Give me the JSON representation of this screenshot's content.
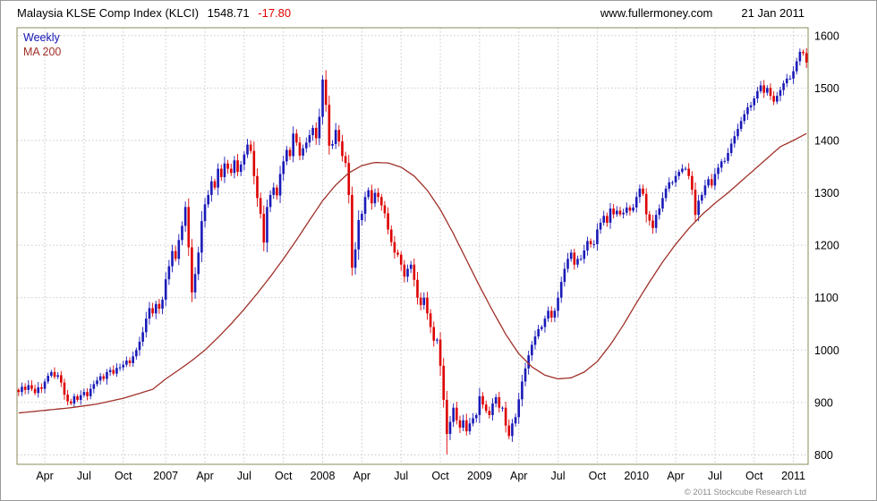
{
  "header": {
    "title": "Malaysia KLSE Comp Index (KLCI)",
    "last_price": "1548.71",
    "change": "-17.80",
    "site": "www.fullermoney.com",
    "date": "21 Jan 2011"
  },
  "legend": {
    "series1": "Weekly",
    "series2": "MA 200"
  },
  "footer": {
    "copyright": "© 2011 Stockcube Research Ltd"
  },
  "colors": {
    "up": "#1a1ab8",
    "down": "#dd0000",
    "ma": "#a03028",
    "grid": "#c9c9c9",
    "frame": "#8b8b5a",
    "axis_text": "#000000",
    "change_text": "#e00000"
  },
  "chart_data": {
    "type": "candlestick",
    "timeframe": "Weekly",
    "title": "Malaysia KLSE Comp Index (KLCI)",
    "overlay": "MA 200",
    "last_close": 1548.71,
    "change": -17.8,
    "ylim": [
      800,
      1600
    ],
    "y_labels": [
      1600,
      1500,
      1400,
      1300,
      1200,
      1100,
      1000,
      900,
      800
    ],
    "x_ticks": [
      {
        "label": "Apr",
        "index": 8
      },
      {
        "label": "Jul",
        "index": 20
      },
      {
        "label": "Oct",
        "index": 32
      },
      {
        "label": "2007",
        "index": 45
      },
      {
        "label": "Apr",
        "index": 57
      },
      {
        "label": "Jul",
        "index": 69
      },
      {
        "label": "Oct",
        "index": 81
      },
      {
        "label": "2008",
        "index": 93
      },
      {
        "label": "Apr",
        "index": 105
      },
      {
        "label": "Jul",
        "index": 117
      },
      {
        "label": "Oct",
        "index": 129
      },
      {
        "label": "2009",
        "index": 141
      },
      {
        "label": "Apr",
        "index": 153
      },
      {
        "label": "Jul",
        "index": 165
      },
      {
        "label": "Oct",
        "index": 177
      },
      {
        "label": "2010",
        "index": 189
      },
      {
        "label": "Apr",
        "index": 201
      },
      {
        "label": "Jul",
        "index": 213
      },
      {
        "label": "Oct",
        "index": 225
      },
      {
        "label": "2011",
        "index": 237
      }
    ],
    "first_open": 924,
    "closes": [
      920,
      930,
      924,
      933,
      926,
      918,
      929,
      926,
      940,
      951,
      958,
      949,
      952,
      938,
      915,
      902,
      898,
      912,
      905,
      914,
      920,
      912,
      926,
      935,
      942,
      950,
      945,
      958,
      962,
      955,
      966,
      967,
      972,
      980,
      975,
      988,
      1000,
      1016,
      1034,
      1060,
      1080,
      1070,
      1088,
      1079,
      1096,
      1135,
      1160,
      1189,
      1174,
      1210,
      1237,
      1273,
      1196,
      1110,
      1145,
      1186,
      1246,
      1278,
      1296,
      1322,
      1310,
      1346,
      1330,
      1356,
      1346,
      1338,
      1362,
      1340,
      1354,
      1373,
      1392,
      1380,
      1332,
      1290,
      1260,
      1205,
      1273,
      1296,
      1310,
      1295,
      1336,
      1360,
      1382,
      1370,
      1413,
      1396,
      1371,
      1385,
      1396,
      1410,
      1424,
      1404,
      1445,
      1516,
      1468,
      1390,
      1393,
      1420,
      1398,
      1370,
      1357,
      1296,
      1157,
      1192,
      1248,
      1260,
      1292,
      1305,
      1280,
      1300,
      1292,
      1276,
      1261,
      1230,
      1206,
      1186,
      1182,
      1163,
      1140,
      1155,
      1163,
      1134,
      1100,
      1086,
      1100,
      1070,
      1044,
      1018,
      1020,
      970,
      905,
      840,
      863,
      890,
      866,
      852,
      866,
      845,
      860,
      870,
      876,
      912,
      896,
      884,
      876,
      898,
      910,
      890,
      890,
      856,
      836,
      860,
      872,
      906,
      940,
      965,
      990,
      1010,
      1026,
      1040,
      1044,
      1060,
      1075,
      1062,
      1075,
      1100,
      1130,
      1155,
      1174,
      1186,
      1163,
      1174,
      1174,
      1190,
      1208,
      1202,
      1202,
      1230,
      1243,
      1256,
      1243,
      1270,
      1259,
      1266,
      1259,
      1262,
      1272,
      1266,
      1272,
      1292,
      1308,
      1298,
      1259,
      1247,
      1233,
      1258,
      1270,
      1290,
      1308,
      1320,
      1320,
      1332,
      1340,
      1346,
      1346,
      1332,
      1306,
      1258,
      1285,
      1296,
      1314,
      1326,
      1314,
      1336,
      1348,
      1360,
      1361,
      1376,
      1394,
      1408,
      1422,
      1437,
      1450,
      1463,
      1467,
      1480,
      1494,
      1505,
      1491,
      1500,
      1485,
      1474,
      1485,
      1496,
      1509,
      1518,
      1518,
      1532,
      1551,
      1569,
      1566.51,
      1548.71
    ],
    "wick_overrides": {
      "93": [
        1524,
        null
      ],
      "131": [
        null,
        801
      ],
      "150": [
        null,
        830
      ],
      "241": [
        1576,
        null
      ]
    },
    "ma200_anchors": [
      [
        0,
        880
      ],
      [
        8,
        885
      ],
      [
        16,
        890
      ],
      [
        24,
        897
      ],
      [
        32,
        908
      ],
      [
        41,
        925
      ],
      [
        45,
        945
      ],
      [
        49,
        962
      ],
      [
        53,
        980
      ],
      [
        57,
        1000
      ],
      [
        61,
        1024
      ],
      [
        65,
        1050
      ],
      [
        69,
        1078
      ],
      [
        73,
        1108
      ],
      [
        77,
        1140
      ],
      [
        81,
        1174
      ],
      [
        85,
        1210
      ],
      [
        89,
        1248
      ],
      [
        93,
        1285
      ],
      [
        97,
        1315
      ],
      [
        101,
        1338
      ],
      [
        105,
        1352
      ],
      [
        109,
        1358
      ],
      [
        113,
        1357
      ],
      [
        117,
        1349
      ],
      [
        121,
        1332
      ],
      [
        125,
        1305
      ],
      [
        129,
        1268
      ],
      [
        133,
        1222
      ],
      [
        137,
        1172
      ],
      [
        141,
        1122
      ],
      [
        145,
        1075
      ],
      [
        149,
        1030
      ],
      [
        153,
        993
      ],
      [
        157,
        968
      ],
      [
        161,
        952
      ],
      [
        165,
        945
      ],
      [
        169,
        947
      ],
      [
        173,
        958
      ],
      [
        177,
        978
      ],
      [
        181,
        1010
      ],
      [
        185,
        1048
      ],
      [
        189,
        1090
      ],
      [
        193,
        1130
      ],
      [
        197,
        1168
      ],
      [
        201,
        1202
      ],
      [
        205,
        1232
      ],
      [
        209,
        1258
      ],
      [
        213,
        1280
      ],
      [
        217,
        1300
      ],
      [
        221,
        1322
      ],
      [
        225,
        1344
      ],
      [
        229,
        1366
      ],
      [
        233,
        1388
      ],
      [
        237,
        1400
      ],
      [
        241,
        1413
      ]
    ]
  }
}
